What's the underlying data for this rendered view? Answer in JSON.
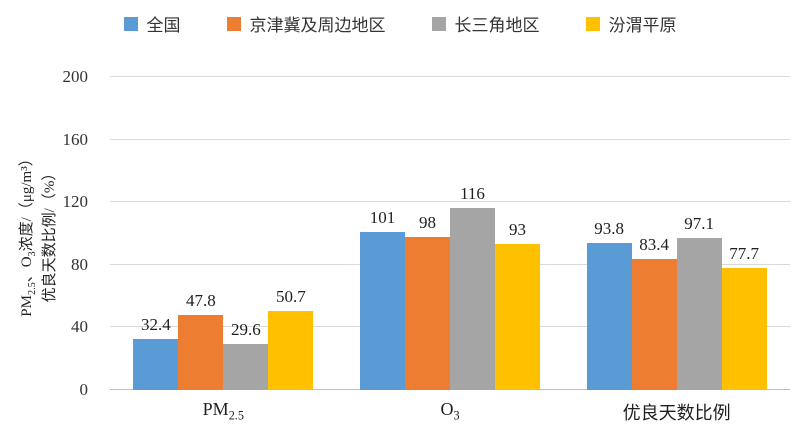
{
  "chart_data": {
    "type": "bar",
    "title": "",
    "categories": [
      "PM_{2.5}",
      "O_{3}",
      "优良天数比例"
    ],
    "series": [
      {
        "name": "全国",
        "color": "#5B9BD5",
        "values": [
          32.4,
          101,
          93.8
        ],
        "labels": [
          "32.4",
          "101",
          "93.8"
        ]
      },
      {
        "name": "京津冀及周边地区",
        "color": "#ED7D31",
        "values": [
          47.8,
          98,
          83.4
        ],
        "labels": [
          "47.8",
          "98",
          "83.4"
        ]
      },
      {
        "name": "长三角地区",
        "color": "#A5A5A5",
        "values": [
          29.6,
          116,
          97.1
        ],
        "labels": [
          "29.6",
          "116",
          "97.1"
        ]
      },
      {
        "name": "汾渭平原",
        "color": "#FFC000",
        "values": [
          50.7,
          93,
          77.7
        ],
        "labels": [
          "50.7",
          "93",
          "77.7"
        ]
      }
    ],
    "ylabel_lines": [
      "PM_{2.5}、O_{3}浓度/（μg/m³）",
      "优良天数比例/（%）"
    ],
    "xlabel": "",
    "yticks": [
      0,
      40,
      80,
      120,
      160,
      200
    ],
    "ylim": [
      0,
      200
    ],
    "grid": true,
    "legend_position": "top",
    "gridline_color": "#d9d9d9",
    "baseline_color": "#bfbfbf",
    "background": "#ffffff"
  }
}
